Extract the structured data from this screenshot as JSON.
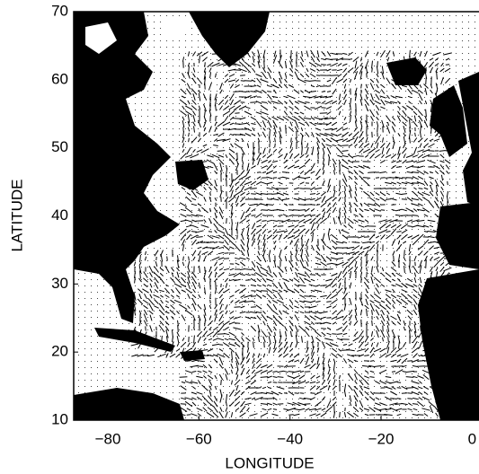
{
  "chart_data": {
    "type": "map",
    "xlabel": "LONGITUDE",
    "ylabel": "LATITUDE",
    "xlim": [
      -87.5,
      1.5
    ],
    "ylim": [
      10,
      70
    ],
    "xticks": [
      {
        "value": -80,
        "label": "−80"
      },
      {
        "value": -60,
        "label": "−60"
      },
      {
        "value": -40,
        "label": "−40"
      },
      {
        "value": -20,
        "label": "−20"
      },
      0
    ],
    "yticks": [
      10,
      20,
      30,
      40,
      50,
      60,
      70
    ]
  }
}
